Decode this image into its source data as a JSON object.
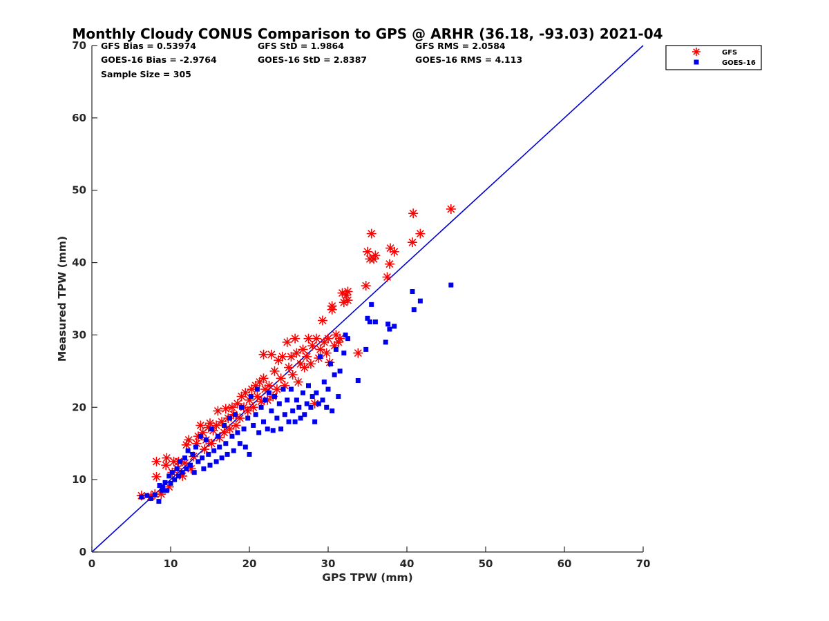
{
  "chart_data": {
    "type": "scatter",
    "title": "Monthly Cloudy CONUS Comparison to GPS @ ARHR (36.18, -93.03) 2021-04",
    "xlabel": "GPS TPW (mm)",
    "ylabel": "Measured TPW (mm)",
    "xlim": [
      0,
      70
    ],
    "ylim": [
      0,
      70
    ],
    "xticks": [
      "0",
      "10",
      "20",
      "30",
      "40",
      "50",
      "60",
      "70"
    ],
    "yticks": [
      "0",
      "10",
      "20",
      "30",
      "40",
      "50",
      "60",
      "70"
    ],
    "grid": false,
    "legend_position": "top-right outside",
    "reference_line": {
      "from": [
        0,
        0
      ],
      "to": [
        70,
        70
      ],
      "color": "#0000cc"
    },
    "stats": [
      "GFS Bias = 0.53974",
      "GFS StD = 1.9864",
      "GFS RMS = 2.0584",
      "GOES-16 Bias = -2.9764",
      "GOES-16 StD = 2.8387",
      "GOES-16 RMS = 4.113",
      "Sample Size = 305"
    ],
    "series": [
      {
        "name": "GFS",
        "marker": "asterisk",
        "color": "#ff0000",
        "points": [
          [
            6.3,
            7.8
          ],
          [
            7.5,
            7.7
          ],
          [
            8.0,
            8.0
          ],
          [
            8.2,
            10.4
          ],
          [
            8.2,
            12.5
          ],
          [
            8.8,
            8.0
          ],
          [
            9.4,
            12.0
          ],
          [
            9.5,
            13.0
          ],
          [
            9.8,
            9.0
          ],
          [
            10.2,
            11.0
          ],
          [
            10.4,
            12.5
          ],
          [
            10.9,
            11.5
          ],
          [
            11.0,
            12.5
          ],
          [
            11.5,
            10.5
          ],
          [
            11.8,
            12.3
          ],
          [
            12.0,
            14.8
          ],
          [
            12.3,
            15.5
          ],
          [
            12.6,
            11.5
          ],
          [
            12.9,
            13.2
          ],
          [
            13.3,
            15.0
          ],
          [
            13.5,
            16.0
          ],
          [
            13.8,
            17.5
          ],
          [
            14.1,
            16.5
          ],
          [
            14.3,
            14.2
          ],
          [
            14.5,
            15.5
          ],
          [
            14.8,
            17.2
          ],
          [
            15.0,
            17.8
          ],
          [
            15.2,
            15.0
          ],
          [
            15.4,
            16.8
          ],
          [
            15.8,
            17.5
          ],
          [
            16.0,
            19.5
          ],
          [
            16.2,
            15.8
          ],
          [
            16.5,
            18.0
          ],
          [
            16.8,
            16.5
          ],
          [
            17.0,
            19.8
          ],
          [
            17.3,
            18.5
          ],
          [
            17.5,
            17.0
          ],
          [
            17.8,
            20.0
          ],
          [
            18.0,
            19.0
          ],
          [
            18.3,
            17.5
          ],
          [
            18.5,
            20.5
          ],
          [
            18.8,
            18.5
          ],
          [
            19.0,
            21.5
          ],
          [
            19.3,
            20.0
          ],
          [
            19.5,
            22.0
          ],
          [
            19.8,
            19.5
          ],
          [
            20.0,
            21.0
          ],
          [
            20.3,
            22.5
          ],
          [
            20.5,
            20.0
          ],
          [
            20.8,
            23.0
          ],
          [
            21.0,
            21.5
          ],
          [
            21.3,
            23.5
          ],
          [
            21.5,
            20.8
          ],
          [
            21.8,
            24.0
          ],
          [
            21.8,
            27.3
          ],
          [
            22.0,
            22.5
          ],
          [
            22.3,
            21.0
          ],
          [
            22.5,
            23.0
          ],
          [
            22.8,
            27.3
          ],
          [
            23.0,
            21.5
          ],
          [
            23.2,
            25.0
          ],
          [
            23.5,
            22.5
          ],
          [
            23.7,
            26.5
          ],
          [
            24.0,
            24.0
          ],
          [
            24.2,
            27.0
          ],
          [
            24.5,
            23.0
          ],
          [
            24.8,
            29.0
          ],
          [
            25.0,
            25.5
          ],
          [
            25.3,
            27.0
          ],
          [
            25.5,
            24.5
          ],
          [
            25.8,
            29.5
          ],
          [
            26.0,
            27.5
          ],
          [
            26.2,
            23.5
          ],
          [
            26.5,
            26.0
          ],
          [
            26.8,
            28.0
          ],
          [
            27.0,
            25.5
          ],
          [
            27.3,
            27.0
          ],
          [
            27.5,
            29.5
          ],
          [
            27.8,
            26.0
          ],
          [
            28.0,
            28.5
          ],
          [
            28.3,
            20.5
          ],
          [
            28.5,
            29.5
          ],
          [
            28.8,
            26.8
          ],
          [
            29.0,
            28.0
          ],
          [
            29.3,
            32.0
          ],
          [
            29.5,
            29.0
          ],
          [
            29.8,
            27.5
          ],
          [
            30.0,
            29.5
          ],
          [
            30.2,
            26.2
          ],
          [
            30.5,
            34.0
          ],
          [
            30.5,
            33.5
          ],
          [
            30.8,
            28.5
          ],
          [
            31.0,
            30.0
          ],
          [
            31.3,
            29.0
          ],
          [
            31.5,
            29.5
          ],
          [
            31.8,
            35.8
          ],
          [
            32.0,
            34.5
          ],
          [
            32.3,
            35.5
          ],
          [
            32.5,
            36.0
          ],
          [
            32.5,
            34.8
          ],
          [
            33.8,
            27.5
          ],
          [
            34.8,
            36.8
          ],
          [
            35.0,
            41.5
          ],
          [
            35.3,
            40.5
          ],
          [
            35.5,
            44.0
          ],
          [
            35.8,
            40.5
          ],
          [
            36.0,
            41.0
          ],
          [
            37.5,
            38.0
          ],
          [
            37.8,
            39.8
          ],
          [
            37.9,
            42.0
          ],
          [
            38.4,
            41.5
          ],
          [
            40.7,
            42.8
          ],
          [
            40.8,
            46.8
          ],
          [
            41.7,
            44.0
          ],
          [
            45.6,
            47.4
          ]
        ]
      },
      {
        "name": "GOES-16",
        "marker": "square",
        "color": "#0000ee",
        "points": [
          [
            6.3,
            7.6
          ],
          [
            7.0,
            7.8
          ],
          [
            7.5,
            7.4
          ],
          [
            8.0,
            7.9
          ],
          [
            8.5,
            7.0
          ],
          [
            8.6,
            9.2
          ],
          [
            8.9,
            8.5
          ],
          [
            9.0,
            9.0
          ],
          [
            9.3,
            9.6
          ],
          [
            9.5,
            8.5
          ],
          [
            9.8,
            10.5
          ],
          [
            10.0,
            9.5
          ],
          [
            10.2,
            11.0
          ],
          [
            10.5,
            10.0
          ],
          [
            10.8,
            11.5
          ],
          [
            11.0,
            10.5
          ],
          [
            11.2,
            12.5
          ],
          [
            11.5,
            11.0
          ],
          [
            11.8,
            13.0
          ],
          [
            12.0,
            11.5
          ],
          [
            12.2,
            14.0
          ],
          [
            12.5,
            12.0
          ],
          [
            12.8,
            13.5
          ],
          [
            13.0,
            11.0
          ],
          [
            13.2,
            14.5
          ],
          [
            13.5,
            12.5
          ],
          [
            13.8,
            16.0
          ],
          [
            14.0,
            13.0
          ],
          [
            14.2,
            11.5
          ],
          [
            14.5,
            15.5
          ],
          [
            14.8,
            13.5
          ],
          [
            15.0,
            12.0
          ],
          [
            15.2,
            17.0
          ],
          [
            15.5,
            14.0
          ],
          [
            15.8,
            12.5
          ],
          [
            16.0,
            16.0
          ],
          [
            16.2,
            14.5
          ],
          [
            16.5,
            13.0
          ],
          [
            16.8,
            17.5
          ],
          [
            17.0,
            15.0
          ],
          [
            17.2,
            13.5
          ],
          [
            17.5,
            18.5
          ],
          [
            17.8,
            16.0
          ],
          [
            18.0,
            14.0
          ],
          [
            18.2,
            19.0
          ],
          [
            18.5,
            16.5
          ],
          [
            18.8,
            15.0
          ],
          [
            19.0,
            20.0
          ],
          [
            19.3,
            17.0
          ],
          [
            19.5,
            14.5
          ],
          [
            19.8,
            18.5
          ],
          [
            20.0,
            13.5
          ],
          [
            20.2,
            21.5
          ],
          [
            20.5,
            17.5
          ],
          [
            20.8,
            19.0
          ],
          [
            21.0,
            22.5
          ],
          [
            21.2,
            16.5
          ],
          [
            21.5,
            20.0
          ],
          [
            21.8,
            18.0
          ],
          [
            22.0,
            21.0
          ],
          [
            22.3,
            17.0
          ],
          [
            22.5,
            22.0
          ],
          [
            22.8,
            19.5
          ],
          [
            23.0,
            16.8
          ],
          [
            23.2,
            21.5
          ],
          [
            23.5,
            18.5
          ],
          [
            23.8,
            20.5
          ],
          [
            24.0,
            17.0
          ],
          [
            24.3,
            22.5
          ],
          [
            24.5,
            19.0
          ],
          [
            24.8,
            21.0
          ],
          [
            25.0,
            18.0
          ],
          [
            25.3,
            22.5
          ],
          [
            25.5,
            19.5
          ],
          [
            25.8,
            18.0
          ],
          [
            26.0,
            21.0
          ],
          [
            26.3,
            20.0
          ],
          [
            26.5,
            18.5
          ],
          [
            26.8,
            22.0
          ],
          [
            27.0,
            19.0
          ],
          [
            27.3,
            20.5
          ],
          [
            27.5,
            23.0
          ],
          [
            27.8,
            20.0
          ],
          [
            28.0,
            21.5
          ],
          [
            28.3,
            18.0
          ],
          [
            28.5,
            22.0
          ],
          [
            28.8,
            20.5
          ],
          [
            29.0,
            27.0
          ],
          [
            29.3,
            21.0
          ],
          [
            29.5,
            23.5
          ],
          [
            29.8,
            20.0
          ],
          [
            30.0,
            22.5
          ],
          [
            30.3,
            26.0
          ],
          [
            30.5,
            19.5
          ],
          [
            30.8,
            24.5
          ],
          [
            31.0,
            28.0
          ],
          [
            31.3,
            21.5
          ],
          [
            31.5,
            25.0
          ],
          [
            32.0,
            27.5
          ],
          [
            32.2,
            30.0
          ],
          [
            32.5,
            29.5
          ],
          [
            33.8,
            23.7
          ],
          [
            34.8,
            28.0
          ],
          [
            35.0,
            32.3
          ],
          [
            35.3,
            31.8
          ],
          [
            35.5,
            34.2
          ],
          [
            36.0,
            31.8
          ],
          [
            37.3,
            29.0
          ],
          [
            37.6,
            31.5
          ],
          [
            37.8,
            30.8
          ],
          [
            38.4,
            31.2
          ],
          [
            40.7,
            36.0
          ],
          [
            40.9,
            33.5
          ],
          [
            41.7,
            34.7
          ],
          [
            45.6,
            36.9
          ]
        ]
      }
    ]
  }
}
